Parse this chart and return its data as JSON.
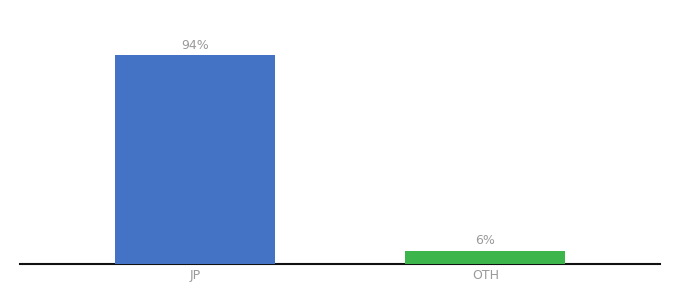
{
  "categories": [
    "JP",
    "OTH"
  ],
  "values": [
    94,
    6
  ],
  "bar_colors": [
    "#4472c4",
    "#3cb54a"
  ],
  "labels": [
    "94%",
    "6%"
  ],
  "background_color": "#ffffff",
  "text_color": "#999999",
  "axis_line_color": "#111111",
  "bar_width": 0.55,
  "figsize": [
    6.8,
    3.0
  ],
  "dpi": 100,
  "ylim": [
    0,
    108
  ],
  "label_fontsize": 9,
  "tick_fontsize": 9,
  "xlim": [
    -0.6,
    1.6
  ]
}
